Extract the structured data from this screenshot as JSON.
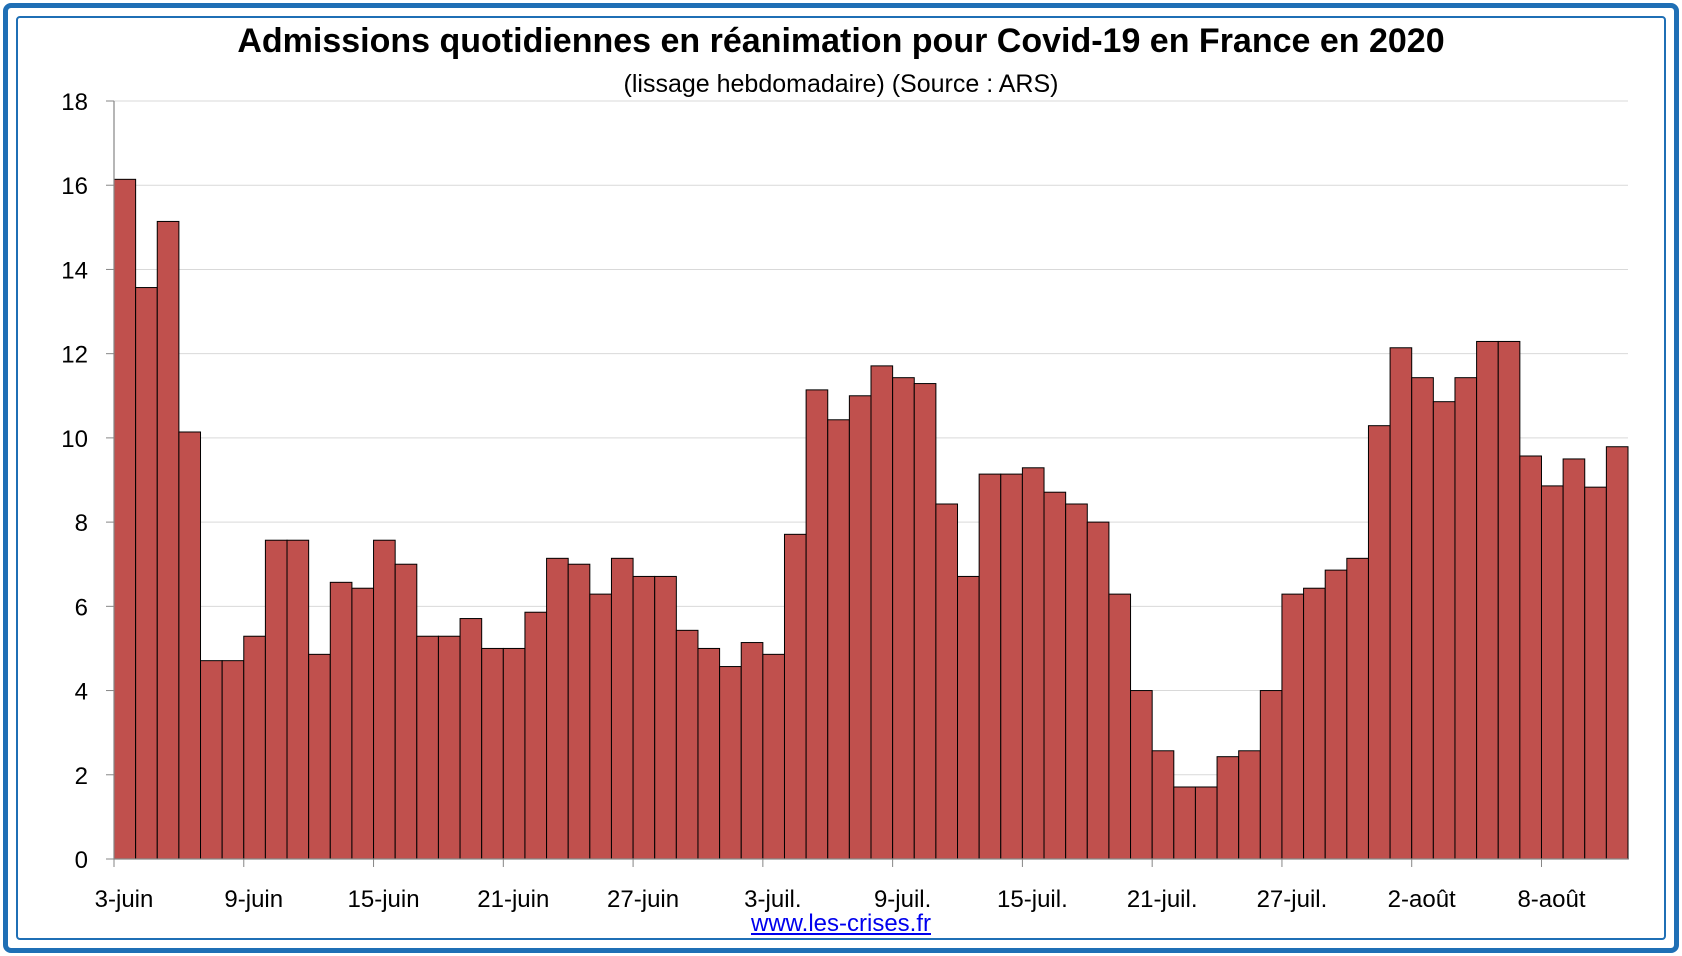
{
  "chart_data": {
    "type": "bar",
    "title": "Admissions quotidiennes en réanimation pour Covid-19 en France en 2020",
    "subtitle": "(lissage hebdomadaire) (Source : ARS)",
    "ylim": [
      0,
      18
    ],
    "yticks": [
      0,
      2,
      4,
      6,
      8,
      10,
      12,
      14,
      16,
      18
    ],
    "xtick_labels": [
      "3-juin",
      "9-juin",
      "15-juin",
      "21-juin",
      "27-juin",
      "3-juil.",
      "9-juil.",
      "15-juil.",
      "21-juil.",
      "27-juil.",
      "2-août",
      "8-août"
    ],
    "xtick_every": 6,
    "grid": true,
    "bar_color": "#c0504d",
    "values": [
      16.14,
      13.57,
      15.14,
      10.14,
      4.71,
      4.71,
      5.29,
      7.57,
      7.57,
      4.86,
      6.57,
      6.43,
      7.57,
      7.0,
      5.29,
      5.29,
      5.71,
      5.0,
      5.0,
      5.86,
      7.14,
      7.0,
      6.29,
      7.14,
      6.71,
      6.71,
      5.43,
      5.0,
      4.57,
      5.14,
      4.86,
      7.71,
      11.14,
      10.43,
      11.0,
      11.71,
      11.43,
      11.29,
      8.43,
      6.71,
      9.14,
      9.14,
      9.29,
      8.71,
      8.43,
      8.0,
      6.29,
      4.0,
      2.57,
      1.71,
      1.71,
      2.43,
      2.57,
      4.0,
      6.29,
      6.43,
      6.86,
      7.14,
      10.29,
      12.14,
      11.43,
      10.86,
      11.43,
      12.29,
      12.29,
      9.57,
      8.86,
      9.5,
      8.83,
      9.79
    ]
  },
  "footer": {
    "source_link": "www.les-crises.fr"
  }
}
